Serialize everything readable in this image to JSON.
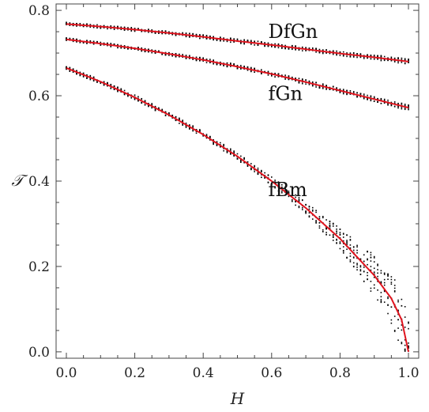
{
  "chart_data": {
    "type": "scatter",
    "xlabel": "H",
    "ylabel": "𝒯",
    "xlim": [
      -0.03,
      1.03
    ],
    "ylim": [
      -0.015,
      0.815
    ],
    "x_ticks": [
      "0.0",
      "0.2",
      "0.4",
      "0.6",
      "0.8",
      "1.0"
    ],
    "y_ticks": [
      "0.0",
      "0.2",
      "0.4",
      "0.6",
      "0.8"
    ],
    "grid": false,
    "marker_color": "#000000",
    "fit_color": "#e0141e",
    "series": [
      {
        "name": "DfGn",
        "label_at": [
          0.59,
          0.75
        ],
        "x": [
          0.0,
          0.1,
          0.2,
          0.3,
          0.4,
          0.5,
          0.6,
          0.7,
          0.8,
          0.9,
          1.0
        ],
        "fit": [
          0.768,
          0.762,
          0.755,
          0.747,
          0.738,
          0.728,
          0.719,
          0.709,
          0.699,
          0.69,
          0.68
        ],
        "spread": [
          0.004,
          0.004,
          0.004,
          0.004,
          0.005,
          0.005,
          0.005,
          0.005,
          0.005,
          0.006,
          0.006
        ]
      },
      {
        "name": "fGn",
        "label_at": [
          0.59,
          0.605
        ],
        "x": [
          0.0,
          0.1,
          0.2,
          0.3,
          0.4,
          0.5,
          0.6,
          0.7,
          0.8,
          0.9,
          1.0
        ],
        "fit": [
          0.732,
          0.722,
          0.711,
          0.698,
          0.684,
          0.668,
          0.651,
          0.632,
          0.612,
          0.592,
          0.572
        ],
        "spread": [
          0.004,
          0.004,
          0.004,
          0.004,
          0.005,
          0.005,
          0.005,
          0.006,
          0.006,
          0.006,
          0.007
        ]
      },
      {
        "name": "fBm",
        "label_at": [
          0.59,
          0.38
        ],
        "x": [
          0.0,
          0.1,
          0.2,
          0.3,
          0.4,
          0.5,
          0.6,
          0.7,
          0.8,
          0.85,
          0.9,
          0.95,
          0.98,
          1.0
        ],
        "fit": [
          0.665,
          0.633,
          0.596,
          0.555,
          0.509,
          0.458,
          0.4,
          0.337,
          0.265,
          0.222,
          0.179,
          0.125,
          0.075,
          0.0
        ],
        "spread": [
          0.005,
          0.005,
          0.006,
          0.006,
          0.007,
          0.008,
          0.01,
          0.014,
          0.025,
          0.035,
          0.05,
          0.06,
          0.07,
          0.07
        ]
      }
    ]
  }
}
